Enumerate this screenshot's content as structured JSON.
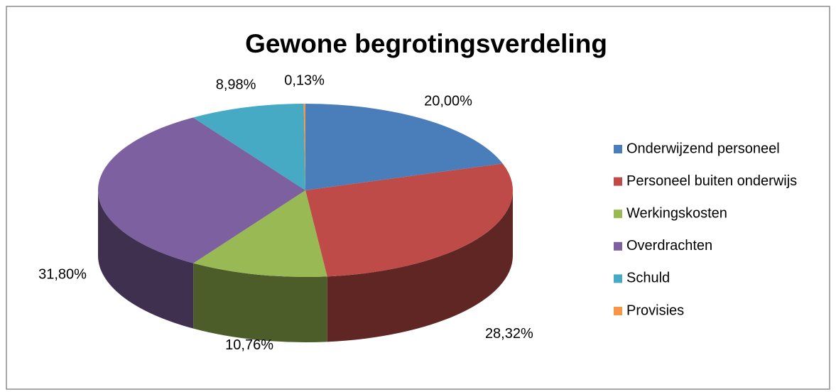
{
  "chart_data": {
    "type": "pie3d",
    "title": "Gewone begrotingsverdeling",
    "categories": [
      "Onderwijzend personeel",
      "Personeel buiten onderwijs",
      "Werkingskosten",
      "Overdrachten",
      "Schuld",
      "Provisies"
    ],
    "values": [
      20.0,
      28.32,
      10.76,
      31.8,
      8.98,
      0.13
    ],
    "value_labels": [
      "20,00%",
      "28,32%",
      "10,76%",
      "31,80%",
      "8,98%",
      "0,13%"
    ],
    "colors": [
      "#4a7ebb",
      "#be4b48",
      "#98b954",
      "#7d60a0",
      "#46aac5",
      "#f79646"
    ],
    "legend": "right"
  }
}
